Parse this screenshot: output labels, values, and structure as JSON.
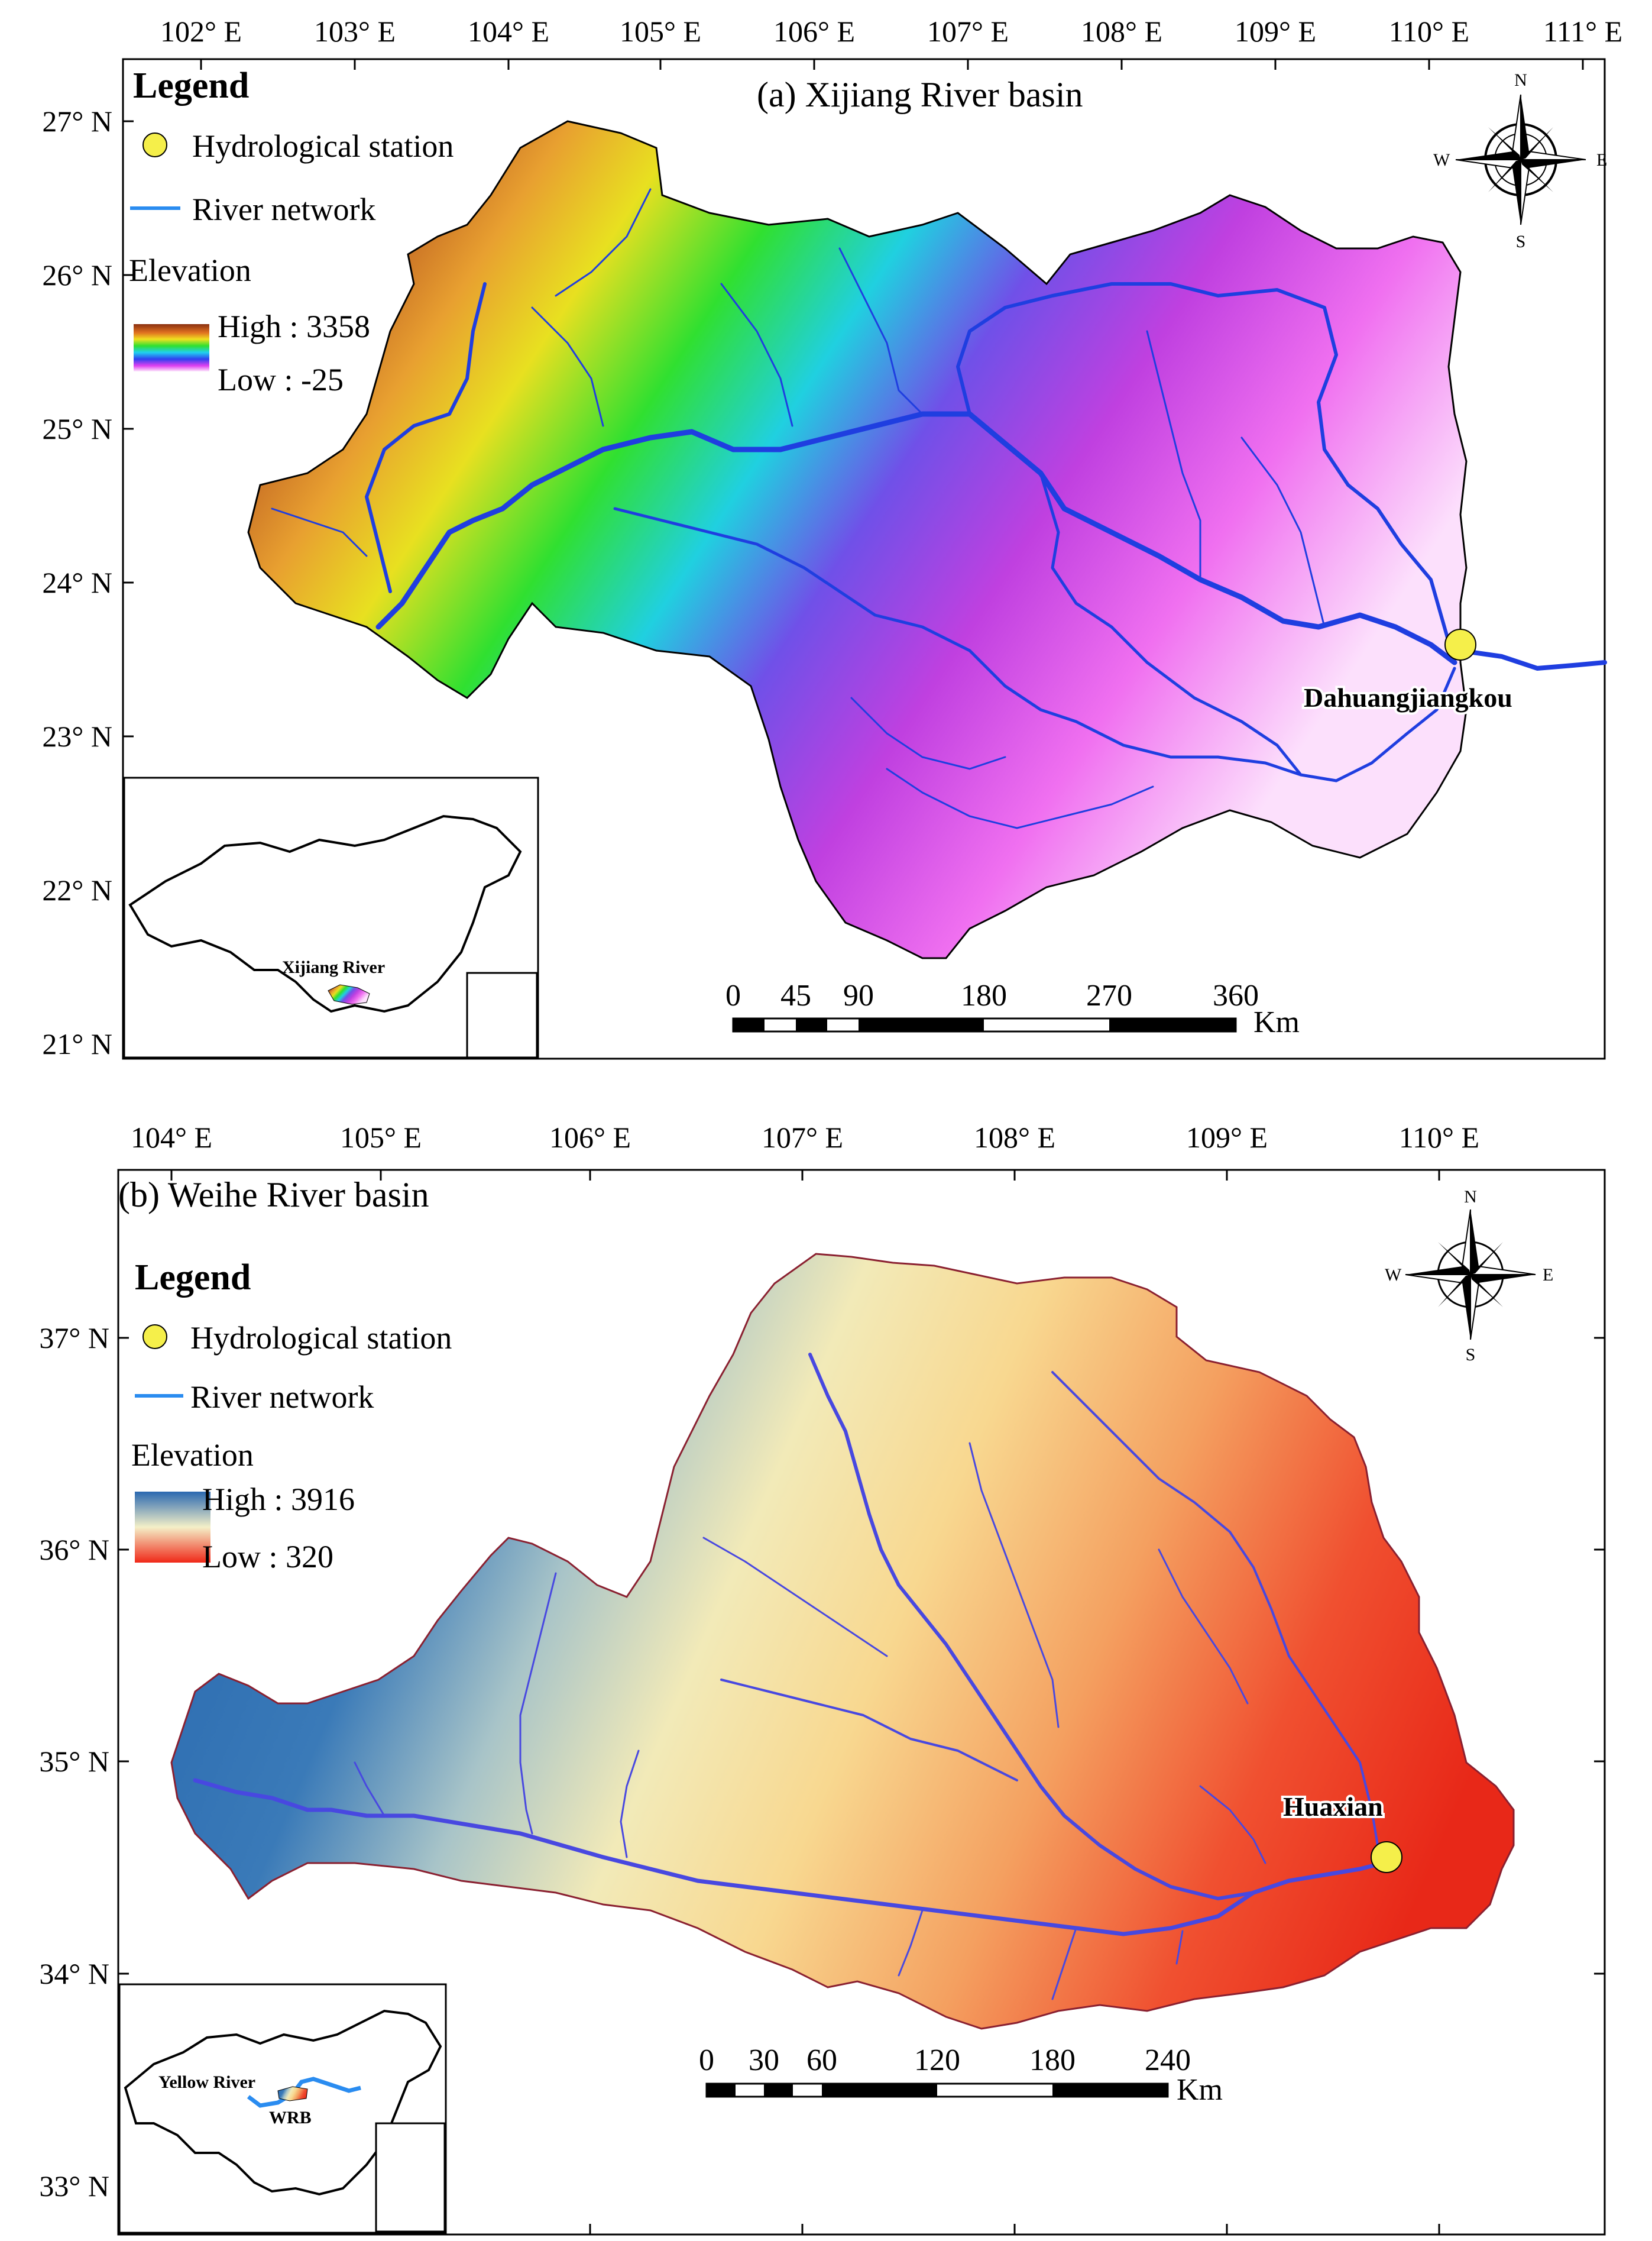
{
  "panel_a": {
    "title": "(a) Xijiang River basin",
    "lon_ticks": [
      "102° E",
      "103° E",
      "104° E",
      "105° E",
      "106° E",
      "107° E",
      "108° E",
      "109° E",
      "110° E",
      "111° E"
    ],
    "lat_ticks": [
      "27° N",
      "26° N",
      "25° N",
      "24° N",
      "23° N",
      "22° N",
      "21° N"
    ],
    "legend": {
      "title": "Legend",
      "station": "Hydrological station",
      "river": "River network",
      "elevation_title": "Elevation",
      "high": "High : 3358",
      "low": "Low : -25"
    },
    "station_name": "Dahuangjiangkou",
    "inset_label": "Xijiang River",
    "scale": {
      "labels": [
        "0",
        "45",
        "90",
        "180",
        "270",
        "360"
      ],
      "unit": "Km"
    },
    "compass": {
      "n": "N",
      "s": "S",
      "e": "E",
      "w": "W"
    }
  },
  "panel_b": {
    "title": "(b) Weihe River basin",
    "lon_ticks": [
      "104° E",
      "105° E",
      "106° E",
      "107° E",
      "108° E",
      "109° E",
      "110° E"
    ],
    "lat_ticks": [
      "37° N",
      "36° N",
      "35° N",
      "34° N",
      "33° N"
    ],
    "legend": {
      "title": "Legend",
      "station": "Hydrological station",
      "river": "River network",
      "elevation_title": "Elevation",
      "high": "High : 3916",
      "low": "Low : 320"
    },
    "station_name": "Huaxian",
    "inset_labels": {
      "river": "Yellow River",
      "basin": "WRB"
    },
    "scale": {
      "labels": [
        "0",
        "30",
        "60",
        "120",
        "180",
        "240"
      ],
      "unit": "Km"
    },
    "compass": {
      "n": "N",
      "s": "S",
      "e": "E",
      "w": "W"
    }
  },
  "colors": {
    "river": "#1f3ee0",
    "legend_river": "#2a8cf0",
    "station": "#f5ef4a",
    "boundary_b": "#8a2030"
  }
}
